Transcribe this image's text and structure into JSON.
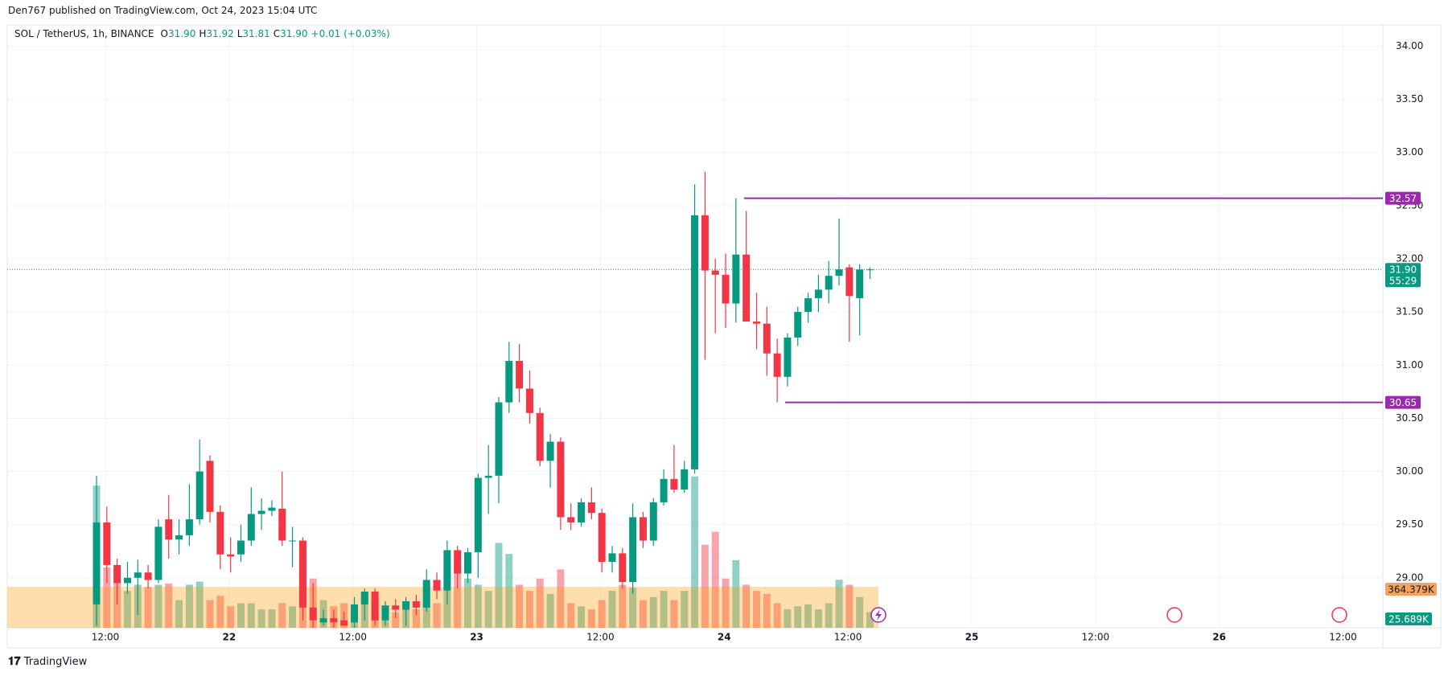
{
  "header": {
    "published": "Den767 published on TradingView.com, Oct 24, 2023 15:04 UTC",
    "symbol": "SOL / TetherUS, 1h, BINANCE",
    "fields": [
      {
        "label": "O",
        "value": "31.90"
      },
      {
        "label": "H",
        "value": "31.92"
      },
      {
        "label": "L",
        "value": "31.81"
      },
      {
        "label": "C",
        "value": "31.90"
      }
    ],
    "change": "+0.01 (+0.03%)"
  },
  "footer": {
    "brand": "TradingView"
  },
  "chart_data": {
    "type": "candlestick",
    "up_color": "#089981",
    "down_color": "#f23645",
    "level_color": "#9c27b0",
    "ylim": [
      28.53,
      34.2
    ],
    "yticks": [
      {
        "value": 29,
        "label": "29.00"
      },
      {
        "value": 29.5,
        "label": "29.50"
      },
      {
        "value": 30,
        "label": "30.00"
      },
      {
        "value": 30.5,
        "label": "30.50"
      },
      {
        "value": 31,
        "label": "31.00"
      },
      {
        "value": 31.5,
        "label": "31.50"
      },
      {
        "value": 32,
        "label": "32.00"
      },
      {
        "value": 32.5,
        "label": "32.50"
      },
      {
        "value": 33,
        "label": "33.00"
      },
      {
        "value": 33.5,
        "label": "33.50"
      },
      {
        "value": 34,
        "label": "34.00"
      }
    ],
    "x_labels": [
      "12:00",
      "22",
      "12:00",
      "23",
      "12:00",
      "24",
      "12:00",
      "25",
      "12:00",
      "26",
      "12:00"
    ],
    "grid": true,
    "open": [
      28.75,
      29.52,
      29.12,
      28.95,
      29.0,
      29.05,
      28.98,
      29.55,
      29.36,
      29.4,
      29.55,
      30.1,
      29.62,
      29.22,
      29.22,
      29.35,
      29.6,
      29.63,
      29.65,
      29.35,
      29.35,
      28.72,
      28.58,
      28.62,
      28.6,
      28.58,
      28.75,
      28.87,
      28.6,
      28.74,
      28.7,
      28.78,
      28.72,
      28.98,
      28.88,
      29.26,
      29.04,
      29.24,
      29.94,
      29.96,
      30.65,
      31.04,
      30.78,
      30.55,
      30.1,
      30.28,
      29.57,
      29.52,
      29.71,
      29.61,
      29.15,
      29.23,
      28.96,
      29.57,
      29.35,
      29.71,
      29.93,
      29.83,
      30.02,
      32.41,
      31.89,
      31.85,
      31.58,
      32.04,
      31.41,
      31.39,
      31.11,
      30.89,
      31.26,
      31.5,
      31.63,
      31.71,
      31.84,
      31.92,
      31.63,
      31.9
    ],
    "high": [
      29.96,
      29.67,
      29.18,
      29.15,
      29.17,
      29.12,
      29.55,
      29.78,
      29.55,
      29.88,
      30.3,
      30.15,
      29.68,
      29.38,
      29.5,
      29.85,
      29.75,
      29.73,
      30.0,
      29.48,
      29.38,
      28.95,
      28.7,
      28.7,
      28.68,
      28.82,
      28.9,
      28.9,
      28.78,
      28.8,
      28.82,
      28.84,
      29.08,
      29.05,
      29.35,
      29.3,
      29.28,
      29.98,
      30.25,
      30.7,
      31.22,
      31.2,
      30.95,
      30.6,
      30.35,
      30.32,
      29.7,
      29.75,
      29.85,
      29.65,
      29.3,
      29.28,
      29.7,
      29.62,
      29.75,
      30.02,
      30.25,
      30.1,
      32.7,
      32.82,
      32.0,
      32.05,
      32.57,
      32.45,
      31.68,
      31.55,
      31.25,
      31.3,
      31.55,
      31.68,
      31.85,
      31.98,
      32.38,
      31.95,
      31.95,
      31.92
    ],
    "low": [
      28.55,
      28.95,
      28.75,
      28.85,
      28.65,
      28.9,
      28.95,
      29.18,
      29.22,
      29.3,
      29.5,
      29.52,
      29.08,
      29.05,
      29.15,
      29.3,
      29.45,
      29.58,
      29.3,
      29.1,
      28.6,
      28.5,
      28.55,
      28.5,
      28.55,
      28.5,
      28.6,
      28.55,
      28.55,
      28.62,
      28.55,
      28.65,
      28.68,
      28.8,
      28.75,
      28.9,
      28.95,
      29.0,
      29.6,
      29.7,
      30.55,
      30.65,
      30.45,
      30.05,
      29.85,
      29.45,
      29.45,
      29.48,
      29.55,
      29.05,
      29.05,
      28.9,
      28.85,
      29.28,
      29.3,
      29.68,
      29.8,
      29.8,
      29.98,
      31.05,
      31.3,
      31.35,
      31.4,
      31.45,
      31.15,
      30.9,
      30.65,
      30.8,
      31.18,
      31.4,
      31.5,
      31.58,
      31.75,
      31.22,
      31.28,
      31.81
    ],
    "close": [
      29.52,
      29.12,
      28.95,
      29.0,
      29.05,
      28.98,
      29.48,
      29.36,
      29.4,
      29.55,
      30.0,
      29.62,
      29.22,
      29.2,
      29.35,
      29.6,
      29.63,
      29.66,
      29.35,
      29.35,
      28.72,
      28.6,
      28.62,
      28.58,
      28.55,
      28.75,
      28.87,
      28.6,
      28.74,
      28.7,
      28.78,
      28.72,
      28.98,
      28.88,
      29.26,
      29.04,
      29.24,
      29.94,
      29.96,
      30.65,
      31.04,
      30.78,
      30.55,
      30.1,
      30.28,
      29.57,
      29.52,
      29.71,
      29.61,
      29.15,
      29.23,
      28.96,
      29.57,
      29.35,
      29.71,
      29.93,
      29.83,
      30.02,
      32.41,
      31.89,
      31.85,
      31.58,
      32.04,
      31.41,
      31.39,
      31.11,
      30.89,
      31.26,
      31.5,
      31.63,
      31.71,
      31.84,
      31.9,
      31.65,
      31.9,
      31.9
    ],
    "volume": [
      231,
      98,
      80,
      60,
      70,
      66,
      70,
      72,
      45,
      70,
      75,
      45,
      52,
      35,
      40,
      40,
      30,
      30,
      40,
      35,
      110,
      80,
      45,
      35,
      40,
      30,
      50,
      45,
      30,
      25,
      35,
      30,
      70,
      40,
      95,
      105,
      80,
      70,
      60,
      138,
      120,
      70,
      60,
      80,
      55,
      95,
      40,
      35,
      30,
      45,
      60,
      70,
      65,
      45,
      50,
      60,
      45,
      60,
      246,
      135,
      156,
      80,
      110,
      70,
      60,
      55,
      40,
      30,
      35,
      38,
      30,
      40,
      78,
      70,
      50,
      25.689
    ],
    "volume_lim": [
      0,
      980
    ],
    "levels": [
      {
        "value": 32.57,
        "label": "32.57"
      },
      {
        "value": 30.65,
        "label": "30.65"
      }
    ],
    "last_price": {
      "value": 31.9,
      "label": "31.90",
      "countdown": "55:29"
    },
    "volume_ma_label": "364.379K",
    "volume_last_label": "25.689K"
  }
}
